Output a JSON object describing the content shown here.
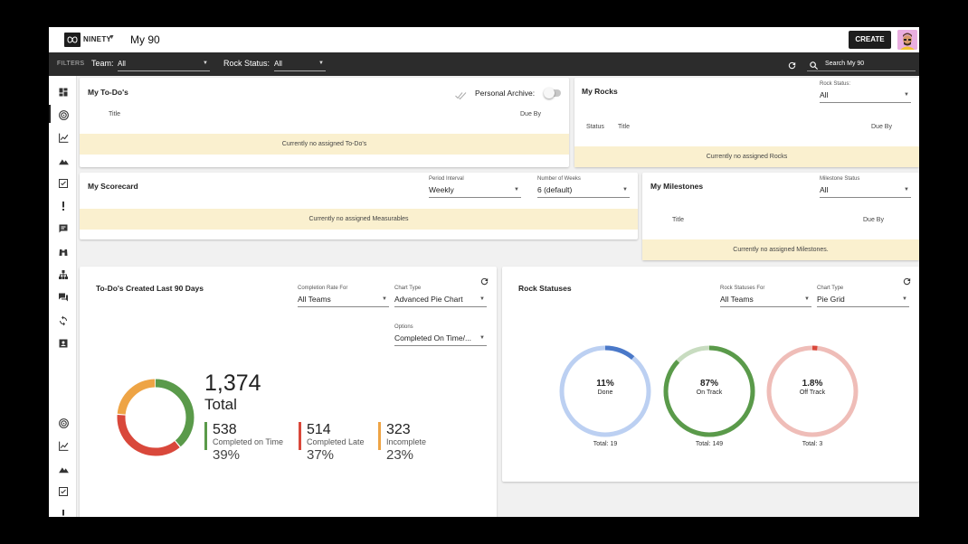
{
  "header": {
    "brand": "NINETY",
    "page_title": "My 90",
    "create_label": "CREATE"
  },
  "filters": {
    "label": "FILTERS",
    "team_key": "Team:",
    "team_value": "All",
    "rock_status_key": "Rock Status:",
    "rock_status_value": "All",
    "search_placeholder": "Search My 90"
  },
  "todos": {
    "title": "My To-Do's",
    "archive_label": "Personal Archive:",
    "col_title": "Title",
    "col_due": "Due By",
    "empty": "Currently no assigned To-Do's"
  },
  "rocks": {
    "title": "My Rocks",
    "status_filter_label": "Rock Status:",
    "status_filter_value": "All",
    "col_status": "Status",
    "col_title": "Title",
    "col_due": "Due By",
    "empty": "Currently no assigned Rocks"
  },
  "scorecard": {
    "title": "My Scorecard",
    "period_label": "Period Interval",
    "period_value": "Weekly",
    "weeks_label": "Number of Weeks",
    "weeks_value": "6 (default)",
    "empty": "Currently no assigned Measurables"
  },
  "milestones": {
    "title": "My Milestones",
    "status_label": "Milestone Status",
    "status_value": "All",
    "col_title": "Title",
    "col_due": "Due By",
    "empty": "Currently no assigned Milestones."
  },
  "todo_chart": {
    "title": "To-Do's Created Last 90 Days",
    "completion_label": "Completion Rate For",
    "completion_value": "All Teams",
    "chart_type_label": "Chart Type",
    "chart_type_value": "Advanced Pie Chart",
    "options_label": "Options",
    "options_value": "Completed On Time/...",
    "total_value": "1,374",
    "total_label": "Total",
    "stats": [
      {
        "value": "538",
        "label": "Completed on Time",
        "pct": "39%",
        "color": "#5a9a4a"
      },
      {
        "value": "514",
        "label": "Completed Late",
        "pct": "37%",
        "color": "#d9483b"
      },
      {
        "value": "323",
        "label": "Incomplete",
        "pct": "23%",
        "color": "#eea445"
      }
    ]
  },
  "rock_statuses": {
    "title": "Rock Statuses",
    "for_label": "Rock Statuses For",
    "for_value": "All Teams",
    "chart_type_label": "Chart Type",
    "chart_type_value": "Pie Grid",
    "pies": [
      {
        "pct": "11%",
        "name": "Done",
        "total": "Total: 19",
        "fraction": 0.11,
        "color": "#4a78c8",
        "track": "#bcd0f2"
      },
      {
        "pct": "87%",
        "name": "On Track",
        "total": "Total: 149",
        "fraction": 0.87,
        "color": "#5a9a4a",
        "track": "#c8dcc0"
      },
      {
        "pct": "1.8%",
        "name": "Off Track",
        "total": "Total: 3",
        "fraction": 0.018,
        "color": "#d9483b",
        "track": "#efbdb8"
      }
    ]
  },
  "chart_data": {
    "type": "pie",
    "categories": [
      "Completed on Time",
      "Completed Late",
      "Incomplete"
    ],
    "values": [
      538,
      514,
      323
    ],
    "total": 1374
  }
}
